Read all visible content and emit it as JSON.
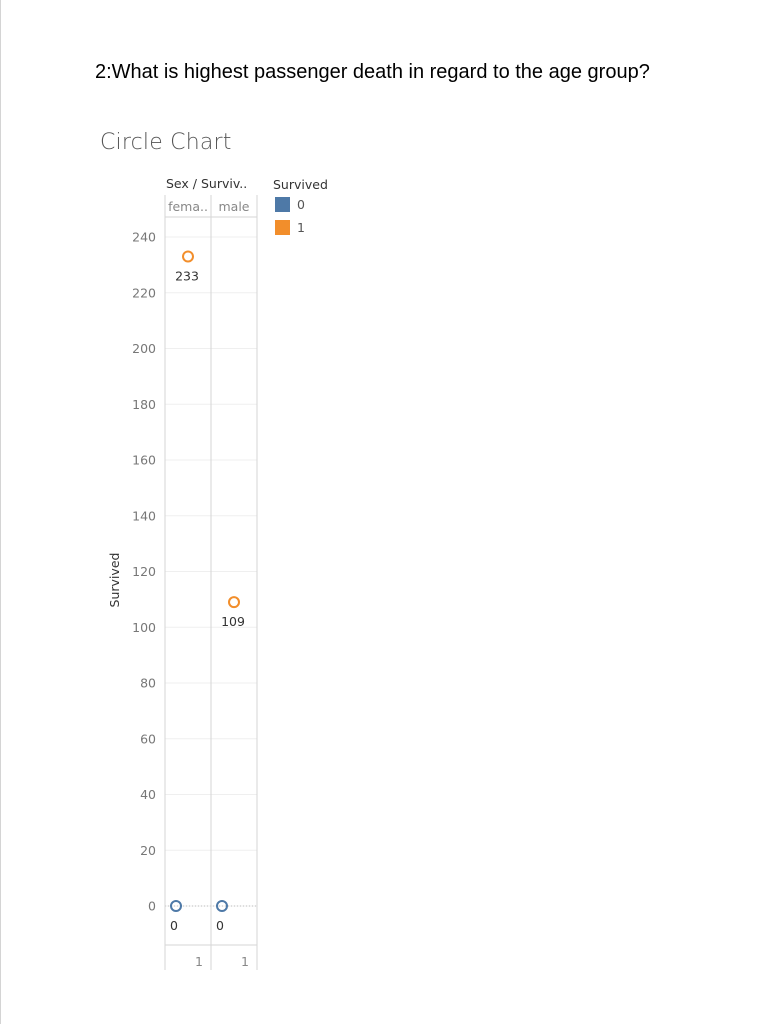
{
  "question": "2:What is highest passenger death in regard to the age group?",
  "chart_title": "Circle Chart",
  "chart_data": {
    "type": "scatter",
    "title": "Circle Chart",
    "ylabel": "Survived",
    "column_header": "Sex / Surviv..",
    "columns": [
      "fema..",
      "male"
    ],
    "x_tick_labels": [
      "1",
      "1"
    ],
    "ylim": [
      -14,
      248
    ],
    "y_ticks": [
      0,
      20,
      40,
      60,
      80,
      100,
      120,
      140,
      160,
      180,
      200,
      220,
      240
    ],
    "grid": true,
    "legend": {
      "title": "Survived",
      "position": "right",
      "items": [
        {
          "label": "0",
          "color": "#4e79a7"
        },
        {
          "label": "1",
          "color": "#f28e2b"
        }
      ]
    },
    "points": [
      {
        "column": "fema..",
        "survived": "1",
        "value": 233,
        "label": "233"
      },
      {
        "column": "male",
        "survived": "1",
        "value": 109,
        "label": "109"
      },
      {
        "column": "fema..",
        "survived": "0",
        "value": 0,
        "label": "0"
      },
      {
        "column": "male",
        "survived": "0",
        "value": 0,
        "label": "0"
      }
    ]
  }
}
